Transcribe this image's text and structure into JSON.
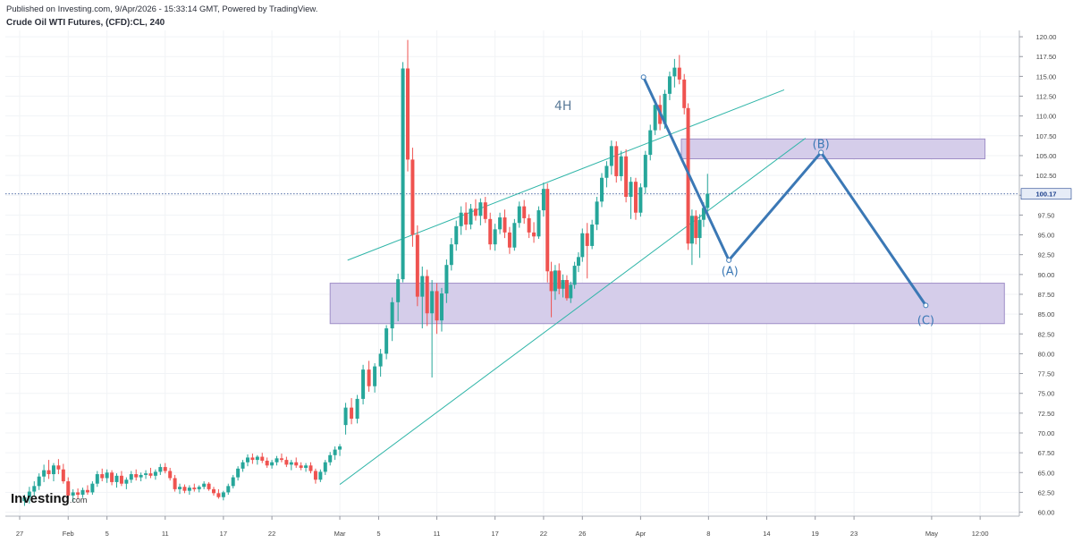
{
  "header": {
    "published": "Published on Investing.com, 9/Apr/2026 - 15:33:14 GMT, Powered by TradingView.",
    "symbol": "Crude Oil WTI Futures, (CFD):CL, 240"
  },
  "logo": {
    "main": "Investing",
    "suffix": ".com"
  },
  "colors": {
    "up": "#26a69a",
    "down": "#ef5350",
    "wave": "#3b78b5",
    "trend": "#2fb5a8",
    "zone_fill": "#d5cdea",
    "zone_stroke": "#9f8fc7",
    "last_price": "#1a3e8a"
  },
  "chart_data": {
    "type": "candlestick",
    "timeframe_label": "4H",
    "ylim": [
      59.5,
      120.8
    ],
    "y_ticks": [
      "60.00",
      "62.50",
      "65.00",
      "67.50",
      "70.00",
      "72.50",
      "75.00",
      "77.50",
      "80.00",
      "82.50",
      "85.00",
      "87.50",
      "90.00",
      "92.50",
      "95.00",
      "97.50",
      "100.00",
      "102.50",
      "105.00",
      "107.50",
      "110.00",
      "112.50",
      "115.00",
      "117.50",
      "120.00"
    ],
    "x_ticks": [
      {
        "label": "27",
        "day": 0
      },
      {
        "label": "Feb",
        "day": 5
      },
      {
        "label": "5",
        "day": 9
      },
      {
        "label": "11",
        "day": 15
      },
      {
        "label": "17",
        "day": 21
      },
      {
        "label": "22",
        "day": 26
      },
      {
        "label": "Mar",
        "day": 33
      },
      {
        "label": "5",
        "day": 37
      },
      {
        "label": "11",
        "day": 43
      },
      {
        "label": "17",
        "day": 49
      },
      {
        "label": "22",
        "day": 54
      },
      {
        "label": "26",
        "day": 58
      },
      {
        "label": "Apr",
        "day": 64
      },
      {
        "label": "8",
        "day": 71
      },
      {
        "label": "14",
        "day": 77
      },
      {
        "label": "19",
        "day": 82
      },
      {
        "label": "23",
        "day": 86
      },
      {
        "label": "May",
        "day": 94
      },
      {
        "label": "12:00",
        "day": 99
      }
    ],
    "last_price": "100.17",
    "zones": [
      {
        "x0": 32.0,
        "x1": 101.5,
        "y0": 83.8,
        "y1": 88.9
      },
      {
        "x0": 68.2,
        "x1": 99.5,
        "y0": 104.6,
        "y1": 107.1
      }
    ],
    "trendlines": [
      {
        "from": [
          33.0,
          63.5
        ],
        "to": [
          81.0,
          107.2
        ]
      },
      {
        "from": [
          33.8,
          91.8
        ],
        "to": [
          78.8,
          113.3
        ]
      }
    ],
    "wave_path": [
      [
        64.3,
        114.9
      ],
      [
        73.1,
        91.8
      ],
      [
        82.6,
        105.4
      ],
      [
        93.4,
        86.1
      ]
    ],
    "wave_labels": [
      {
        "text": "(A)",
        "x": 73.2,
        "y": 90.5
      },
      {
        "text": "(B)",
        "x": 82.6,
        "y": 106.5
      },
      {
        "text": "(C)",
        "x": 93.4,
        "y": 84.3
      }
    ],
    "candles": [
      {
        "d": 0.5,
        "o": 61.4,
        "h": 62.2,
        "l": 60.8,
        "c": 61.9
      },
      {
        "d": 1.0,
        "o": 61.9,
        "h": 63.2,
        "l": 61.1,
        "c": 62.6
      },
      {
        "d": 1.5,
        "o": 62.6,
        "h": 63.9,
        "l": 62.0,
        "c": 63.3
      },
      {
        "d": 2.0,
        "o": 63.3,
        "h": 64.9,
        "l": 62.8,
        "c": 64.5
      },
      {
        "d": 2.5,
        "o": 64.5,
        "h": 66.0,
        "l": 63.8,
        "c": 65.3
      },
      {
        "d": 3.0,
        "o": 65.3,
        "h": 66.6,
        "l": 64.2,
        "c": 64.8
      },
      {
        "d": 3.5,
        "o": 64.8,
        "h": 66.2,
        "l": 63.9,
        "c": 65.9
      },
      {
        "d": 4.0,
        "o": 65.9,
        "h": 66.7,
        "l": 64.8,
        "c": 65.4
      },
      {
        "d": 4.5,
        "o": 65.4,
        "h": 66.1,
        "l": 63.6,
        "c": 63.9
      },
      {
        "d": 5.0,
        "o": 63.9,
        "h": 64.4,
        "l": 61.6,
        "c": 62.1
      },
      {
        "d": 5.5,
        "o": 62.1,
        "h": 62.9,
        "l": 61.3,
        "c": 62.5
      },
      {
        "d": 6.0,
        "o": 62.5,
        "h": 63.0,
        "l": 61.7,
        "c": 62.2
      },
      {
        "d": 6.5,
        "o": 62.2,
        "h": 63.1,
        "l": 61.8,
        "c": 62.8
      },
      {
        "d": 7.0,
        "o": 62.8,
        "h": 63.4,
        "l": 62.2,
        "c": 62.5
      },
      {
        "d": 7.5,
        "o": 62.5,
        "h": 63.9,
        "l": 62.2,
        "c": 63.6
      },
      {
        "d": 8.0,
        "o": 63.6,
        "h": 65.2,
        "l": 63.2,
        "c": 64.8
      },
      {
        "d": 8.5,
        "o": 64.8,
        "h": 65.5,
        "l": 63.9,
        "c": 64.3
      },
      {
        "d": 9.0,
        "o": 64.3,
        "h": 65.4,
        "l": 63.7,
        "c": 65.0
      },
      {
        "d": 9.5,
        "o": 65.0,
        "h": 65.3,
        "l": 63.4,
        "c": 63.8
      },
      {
        "d": 10.0,
        "o": 63.8,
        "h": 64.9,
        "l": 63.1,
        "c": 64.6
      },
      {
        "d": 10.5,
        "o": 64.6,
        "h": 65.2,
        "l": 63.3,
        "c": 63.6
      },
      {
        "d": 11.0,
        "o": 63.6,
        "h": 64.4,
        "l": 62.9,
        "c": 64.1
      },
      {
        "d": 11.5,
        "o": 64.1,
        "h": 65.2,
        "l": 63.7,
        "c": 64.8
      },
      {
        "d": 12.0,
        "o": 64.8,
        "h": 65.4,
        "l": 64.0,
        "c": 64.4
      },
      {
        "d": 12.5,
        "o": 64.4,
        "h": 65.0,
        "l": 63.9,
        "c": 64.7
      },
      {
        "d": 13.0,
        "o": 64.7,
        "h": 65.3,
        "l": 64.2,
        "c": 64.9
      },
      {
        "d": 13.5,
        "o": 64.9,
        "h": 65.6,
        "l": 64.3,
        "c": 64.6
      },
      {
        "d": 14.0,
        "o": 64.6,
        "h": 65.4,
        "l": 64.1,
        "c": 65.1
      },
      {
        "d": 14.5,
        "o": 65.1,
        "h": 66.1,
        "l": 64.7,
        "c": 65.7
      },
      {
        "d": 15.0,
        "o": 65.7,
        "h": 66.2,
        "l": 64.9,
        "c": 65.2
      },
      {
        "d": 15.5,
        "o": 65.2,
        "h": 65.6,
        "l": 64.0,
        "c": 64.3
      },
      {
        "d": 16.0,
        "o": 64.3,
        "h": 64.7,
        "l": 62.6,
        "c": 62.9
      },
      {
        "d": 16.5,
        "o": 62.9,
        "h": 63.6,
        "l": 62.3,
        "c": 63.2
      },
      {
        "d": 17.0,
        "o": 63.2,
        "h": 63.5,
        "l": 62.4,
        "c": 62.7
      },
      {
        "d": 17.5,
        "o": 62.7,
        "h": 63.4,
        "l": 62.2,
        "c": 63.1
      },
      {
        "d": 18.0,
        "o": 63.1,
        "h": 63.6,
        "l": 62.6,
        "c": 62.9
      },
      {
        "d": 18.5,
        "o": 62.9,
        "h": 63.4,
        "l": 62.5,
        "c": 63.2
      },
      {
        "d": 19.0,
        "o": 63.2,
        "h": 63.9,
        "l": 62.9,
        "c": 63.6
      },
      {
        "d": 19.5,
        "o": 63.6,
        "h": 63.8,
        "l": 62.7,
        "c": 62.9
      },
      {
        "d": 20.0,
        "o": 62.9,
        "h": 63.2,
        "l": 62.1,
        "c": 62.4
      },
      {
        "d": 20.5,
        "o": 62.4,
        "h": 62.9,
        "l": 61.7,
        "c": 61.9
      },
      {
        "d": 21.0,
        "o": 61.9,
        "h": 62.7,
        "l": 61.5,
        "c": 62.5
      },
      {
        "d": 21.5,
        "o": 62.5,
        "h": 63.6,
        "l": 62.2,
        "c": 63.3
      },
      {
        "d": 22.0,
        "o": 63.3,
        "h": 64.7,
        "l": 63.0,
        "c": 64.4
      },
      {
        "d": 22.5,
        "o": 64.4,
        "h": 65.8,
        "l": 64.0,
        "c": 65.5
      },
      {
        "d": 23.0,
        "o": 65.5,
        "h": 66.6,
        "l": 65.1,
        "c": 66.3
      },
      {
        "d": 23.5,
        "o": 66.3,
        "h": 67.3,
        "l": 65.8,
        "c": 66.9
      },
      {
        "d": 24.0,
        "o": 66.9,
        "h": 67.4,
        "l": 66.1,
        "c": 66.6
      },
      {
        "d": 24.5,
        "o": 66.6,
        "h": 67.2,
        "l": 66.0,
        "c": 67.0
      },
      {
        "d": 25.0,
        "o": 67.0,
        "h": 67.5,
        "l": 66.2,
        "c": 66.5
      },
      {
        "d": 25.5,
        "o": 66.5,
        "h": 66.9,
        "l": 65.6,
        "c": 65.9
      },
      {
        "d": 26.0,
        "o": 65.9,
        "h": 66.6,
        "l": 65.5,
        "c": 66.3
      },
      {
        "d": 26.5,
        "o": 66.3,
        "h": 67.1,
        "l": 65.9,
        "c": 66.8
      },
      {
        "d": 27.0,
        "o": 66.8,
        "h": 67.4,
        "l": 66.3,
        "c": 66.6
      },
      {
        "d": 27.5,
        "o": 66.6,
        "h": 67.0,
        "l": 65.7,
        "c": 66.0
      },
      {
        "d": 28.0,
        "o": 66.0,
        "h": 66.6,
        "l": 65.3,
        "c": 66.3
      },
      {
        "d": 28.5,
        "o": 66.3,
        "h": 66.9,
        "l": 65.6,
        "c": 65.9
      },
      {
        "d": 29.0,
        "o": 65.9,
        "h": 66.3,
        "l": 65.3,
        "c": 65.6
      },
      {
        "d": 29.5,
        "o": 65.6,
        "h": 66.2,
        "l": 65.1,
        "c": 65.9
      },
      {
        "d": 30.0,
        "o": 65.9,
        "h": 66.3,
        "l": 64.9,
        "c": 65.2
      },
      {
        "d": 30.5,
        "o": 65.2,
        "h": 65.5,
        "l": 63.6,
        "c": 64.1
      },
      {
        "d": 31.0,
        "o": 64.1,
        "h": 65.4,
        "l": 63.8,
        "c": 65.1
      },
      {
        "d": 31.5,
        "o": 65.1,
        "h": 66.6,
        "l": 64.7,
        "c": 66.3
      },
      {
        "d": 32.0,
        "o": 66.3,
        "h": 67.6,
        "l": 65.9,
        "c": 67.2
      },
      {
        "d": 32.5,
        "o": 67.2,
        "h": 68.3,
        "l": 66.6,
        "c": 67.9
      },
      {
        "d": 33.0,
        "o": 67.9,
        "h": 68.6,
        "l": 67.1,
        "c": 68.3
      },
      {
        "d": 33.6,
        "o": 71.0,
        "h": 73.8,
        "l": 69.8,
        "c": 73.2
      },
      {
        "d": 34.2,
        "o": 73.2,
        "h": 74.4,
        "l": 71.1,
        "c": 71.8
      },
      {
        "d": 34.8,
        "o": 71.8,
        "h": 74.8,
        "l": 71.2,
        "c": 74.3
      },
      {
        "d": 35.4,
        "o": 74.3,
        "h": 78.6,
        "l": 73.6,
        "c": 78.0
      },
      {
        "d": 36.0,
        "o": 78.0,
        "h": 79.1,
        "l": 75.2,
        "c": 75.9
      },
      {
        "d": 36.6,
        "o": 75.9,
        "h": 78.8,
        "l": 75.1,
        "c": 78.4
      },
      {
        "d": 37.2,
        "o": 78.4,
        "h": 80.6,
        "l": 77.1,
        "c": 80.0
      },
      {
        "d": 37.8,
        "o": 80.0,
        "h": 83.6,
        "l": 79.3,
        "c": 83.2
      },
      {
        "d": 38.4,
        "o": 83.2,
        "h": 87.1,
        "l": 81.6,
        "c": 86.5
      },
      {
        "d": 39.0,
        "o": 86.5,
        "h": 90.1,
        "l": 84.1,
        "c": 89.4
      },
      {
        "d": 39.5,
        "o": 89.4,
        "h": 116.8,
        "l": 89.0,
        "c": 116.0
      },
      {
        "d": 40.0,
        "o": 116.0,
        "h": 119.6,
        "l": 103.0,
        "c": 104.5
      },
      {
        "d": 40.5,
        "o": 104.5,
        "h": 106.0,
        "l": 93.5,
        "c": 95.0
      },
      {
        "d": 41.0,
        "o": 95.0,
        "h": 96.2,
        "l": 86.0,
        "c": 87.2
      },
      {
        "d": 41.5,
        "o": 87.2,
        "h": 91.0,
        "l": 83.2,
        "c": 89.8
      },
      {
        "d": 42.0,
        "o": 89.8,
        "h": 90.6,
        "l": 83.5,
        "c": 85.1
      },
      {
        "d": 42.5,
        "o": 85.1,
        "h": 89.3,
        "l": 77.0,
        "c": 87.9
      },
      {
        "d": 43.0,
        "o": 87.9,
        "h": 88.9,
        "l": 82.5,
        "c": 84.2
      },
      {
        "d": 43.5,
        "o": 84.2,
        "h": 88.3,
        "l": 82.8,
        "c": 87.6
      },
      {
        "d": 44.0,
        "o": 87.6,
        "h": 91.9,
        "l": 86.4,
        "c": 91.2
      },
      {
        "d": 44.5,
        "o": 91.2,
        "h": 94.6,
        "l": 90.5,
        "c": 93.8
      },
      {
        "d": 45.0,
        "o": 93.8,
        "h": 96.8,
        "l": 93.0,
        "c": 96.1
      },
      {
        "d": 45.5,
        "o": 96.1,
        "h": 98.6,
        "l": 95.0,
        "c": 97.8
      },
      {
        "d": 46.0,
        "o": 97.8,
        "h": 99.1,
        "l": 95.6,
        "c": 96.3
      },
      {
        "d": 46.5,
        "o": 96.3,
        "h": 98.9,
        "l": 95.7,
        "c": 98.3
      },
      {
        "d": 47.0,
        "o": 98.3,
        "h": 99.5,
        "l": 96.8,
        "c": 97.4
      },
      {
        "d": 47.5,
        "o": 97.4,
        "h": 99.6,
        "l": 96.2,
        "c": 99.1
      },
      {
        "d": 48.0,
        "o": 99.1,
        "h": 99.8,
        "l": 96.5,
        "c": 97.0
      },
      {
        "d": 48.5,
        "o": 97.0,
        "h": 97.8,
        "l": 93.1,
        "c": 93.8
      },
      {
        "d": 49.0,
        "o": 93.8,
        "h": 96.4,
        "l": 93.0,
        "c": 95.7
      },
      {
        "d": 49.5,
        "o": 95.7,
        "h": 97.8,
        "l": 95.1,
        "c": 97.2
      },
      {
        "d": 50.0,
        "o": 97.2,
        "h": 98.2,
        "l": 94.6,
        "c": 95.3
      },
      {
        "d": 50.5,
        "o": 95.3,
        "h": 96.0,
        "l": 92.6,
        "c": 93.4
      },
      {
        "d": 51.0,
        "o": 93.4,
        "h": 97.0,
        "l": 93.0,
        "c": 96.5
      },
      {
        "d": 51.5,
        "o": 96.5,
        "h": 99.2,
        "l": 95.9,
        "c": 98.6
      },
      {
        "d": 52.0,
        "o": 98.6,
        "h": 99.4,
        "l": 96.4,
        "c": 97.1
      },
      {
        "d": 52.5,
        "o": 97.1,
        "h": 97.6,
        "l": 94.6,
        "c": 95.3
      },
      {
        "d": 53.0,
        "o": 95.3,
        "h": 96.6,
        "l": 94.0,
        "c": 94.8
      },
      {
        "d": 53.5,
        "o": 94.8,
        "h": 98.6,
        "l": 94.5,
        "c": 98.1
      },
      {
        "d": 54.0,
        "o": 98.1,
        "h": 101.6,
        "l": 97.3,
        "c": 100.8
      },
      {
        "d": 54.4,
        "o": 100.8,
        "h": 101.5,
        "l": 89.0,
        "c": 90.4
      },
      {
        "d": 54.8,
        "o": 90.4,
        "h": 91.6,
        "l": 84.6,
        "c": 87.9
      },
      {
        "d": 55.2,
        "o": 87.9,
        "h": 91.2,
        "l": 86.8,
        "c": 90.5
      },
      {
        "d": 55.6,
        "o": 90.5,
        "h": 91.4,
        "l": 87.5,
        "c": 88.2
      },
      {
        "d": 56.0,
        "o": 88.2,
        "h": 90.0,
        "l": 87.1,
        "c": 89.3
      },
      {
        "d": 56.4,
        "o": 89.3,
        "h": 89.9,
        "l": 86.7,
        "c": 87.0
      },
      {
        "d": 56.8,
        "o": 87.0,
        "h": 89.1,
        "l": 86.4,
        "c": 88.7
      },
      {
        "d": 57.2,
        "o": 88.7,
        "h": 91.6,
        "l": 88.2,
        "c": 91.1
      },
      {
        "d": 57.6,
        "o": 91.1,
        "h": 92.8,
        "l": 90.3,
        "c": 92.2
      },
      {
        "d": 58.0,
        "o": 92.2,
        "h": 95.8,
        "l": 91.6,
        "c": 95.2
      },
      {
        "d": 58.5,
        "o": 95.2,
        "h": 96.5,
        "l": 89.5,
        "c": 93.6
      },
      {
        "d": 59.0,
        "o": 93.6,
        "h": 96.9,
        "l": 93.2,
        "c": 96.3
      },
      {
        "d": 59.5,
        "o": 96.3,
        "h": 99.8,
        "l": 95.6,
        "c": 99.2
      },
      {
        "d": 60.0,
        "o": 99.2,
        "h": 102.8,
        "l": 98.5,
        "c": 102.2
      },
      {
        "d": 60.5,
        "o": 102.2,
        "h": 104.3,
        "l": 101.0,
        "c": 103.7
      },
      {
        "d": 61.0,
        "o": 103.7,
        "h": 106.9,
        "l": 102.6,
        "c": 106.2
      },
      {
        "d": 61.5,
        "o": 106.2,
        "h": 106.8,
        "l": 101.6,
        "c": 102.4
      },
      {
        "d": 62.0,
        "o": 102.4,
        "h": 105.6,
        "l": 101.8,
        "c": 104.9
      },
      {
        "d": 62.5,
        "o": 104.9,
        "h": 105.8,
        "l": 99.1,
        "c": 99.8
      },
      {
        "d": 63.0,
        "o": 99.8,
        "h": 102.3,
        "l": 97.0,
        "c": 101.7
      },
      {
        "d": 63.5,
        "o": 101.7,
        "h": 102.2,
        "l": 96.9,
        "c": 97.8
      },
      {
        "d": 64.0,
        "o": 97.8,
        "h": 101.5,
        "l": 97.3,
        "c": 101.0
      },
      {
        "d": 64.5,
        "o": 101.0,
        "h": 105.6,
        "l": 100.2,
        "c": 105.1
      },
      {
        "d": 65.0,
        "o": 105.1,
        "h": 108.9,
        "l": 104.4,
        "c": 108.2
      },
      {
        "d": 65.5,
        "o": 108.2,
        "h": 112.1,
        "l": 107.6,
        "c": 111.4
      },
      {
        "d": 66.0,
        "o": 111.4,
        "h": 112.6,
        "l": 108.2,
        "c": 109.0
      },
      {
        "d": 66.5,
        "o": 109.0,
        "h": 113.3,
        "l": 108.4,
        "c": 112.8
      },
      {
        "d": 67.0,
        "o": 112.8,
        "h": 115.6,
        "l": 112.0,
        "c": 115.0
      },
      {
        "d": 67.5,
        "o": 115.0,
        "h": 117.2,
        "l": 113.6,
        "c": 116.1
      },
      {
        "d": 68.0,
        "o": 116.1,
        "h": 117.7,
        "l": 114.0,
        "c": 114.6
      },
      {
        "d": 68.5,
        "o": 114.6,
        "h": 115.3,
        "l": 110.2,
        "c": 111.0
      },
      {
        "d": 68.9,
        "o": 111.0,
        "h": 111.6,
        "l": 93.1,
        "c": 93.9
      },
      {
        "d": 69.3,
        "o": 93.9,
        "h": 98.2,
        "l": 91.2,
        "c": 97.4
      },
      {
        "d": 69.7,
        "o": 97.4,
        "h": 98.1,
        "l": 93.8,
        "c": 94.6
      },
      {
        "d": 70.1,
        "o": 94.6,
        "h": 97.6,
        "l": 92.1,
        "c": 96.9
      },
      {
        "d": 70.5,
        "o": 96.9,
        "h": 99.1,
        "l": 96.0,
        "c": 98.4
      },
      {
        "d": 70.9,
        "o": 98.4,
        "h": 102.7,
        "l": 97.9,
        "c": 100.2
      }
    ]
  }
}
